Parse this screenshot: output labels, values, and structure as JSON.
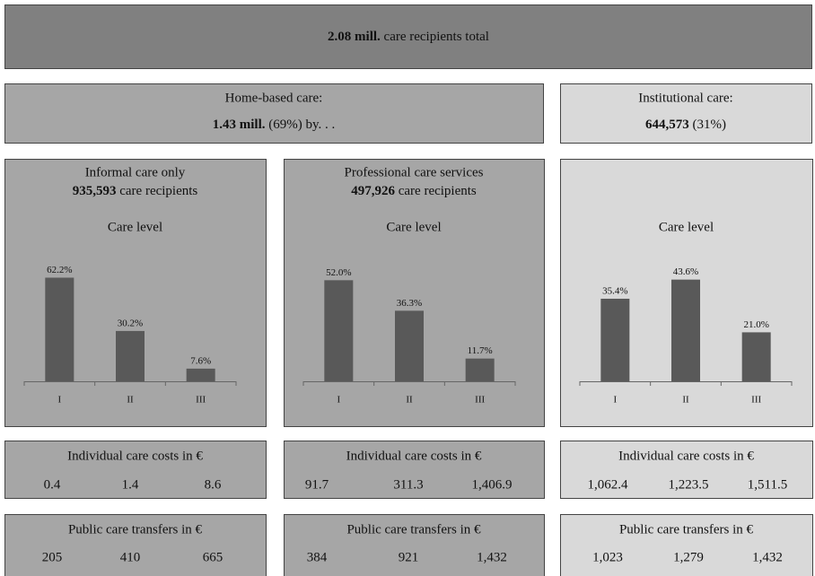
{
  "header": {
    "bold": "2.08 mill.",
    "text": "care recipients total"
  },
  "home_based": {
    "title": "Home-based care:",
    "bold": "1.43 mill.",
    "text": "(69%) by. . ."
  },
  "institutional": {
    "title": "Institutional care:",
    "bold": "644,573",
    "text": "(31%)"
  },
  "columns": [
    {
      "title": "Informal care only",
      "bold": "935,593",
      "text": "care recipients",
      "costs_title": "Individual care costs in €",
      "costs": [
        "0.4",
        "1.4",
        "8.6"
      ],
      "transfers_title": "Public care transfers in €",
      "transfers": [
        "205",
        "410",
        "665"
      ]
    },
    {
      "title": "Professional care services",
      "bold": "497,926",
      "text": "care recipients",
      "costs_title": "Individual care costs in €",
      "costs": [
        "91.7",
        "311.3",
        "1,406.9"
      ],
      "transfers_title": "Public care transfers in €",
      "transfers": [
        "384",
        "921",
        "1,432"
      ]
    },
    {
      "costs_title": "Individual care costs in €",
      "costs": [
        "1,062.4",
        "1,223.5",
        "1,511.5"
      ],
      "transfers_title": "Public care transfers in €",
      "transfers": [
        "1,023",
        "1,279",
        "1,432"
      ]
    }
  ],
  "chart_data": [
    {
      "type": "bar",
      "title": "Care level",
      "categories": [
        "I",
        "II",
        "III"
      ],
      "values": [
        62.2,
        30.2,
        7.6
      ],
      "value_labels": [
        "62.2%",
        "30.2%",
        "7.6%"
      ],
      "color": "#595959",
      "ylim": [
        0,
        70
      ]
    },
    {
      "type": "bar",
      "title": "Care level",
      "categories": [
        "I",
        "II",
        "III"
      ],
      "values": [
        52.0,
        36.3,
        11.7
      ],
      "value_labels": [
        "52.0%",
        "36.3%",
        "11.7%"
      ],
      "color": "#595959",
      "ylim": [
        0,
        60
      ]
    },
    {
      "type": "bar",
      "title": "Care level",
      "categories": [
        "I",
        "II",
        "III"
      ],
      "values": [
        35.4,
        43.6,
        21.0
      ],
      "value_labels": [
        "35.4%",
        "43.6%",
        "21.0%"
      ],
      "color": "#595959",
      "ylim": [
        0,
        50
      ]
    }
  ]
}
